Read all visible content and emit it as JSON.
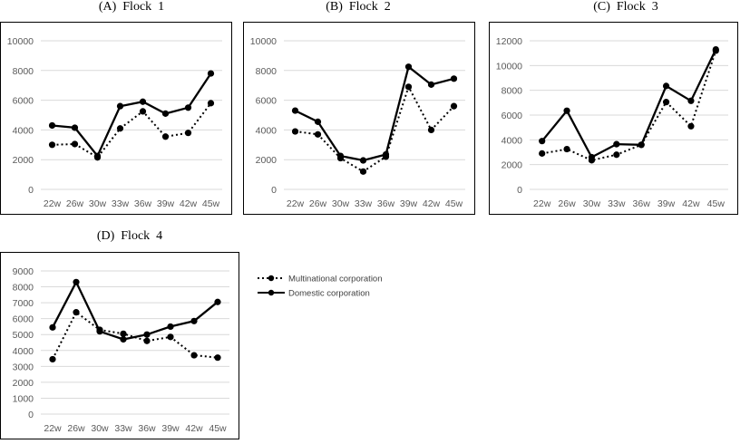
{
  "colors": {
    "line": "#000000",
    "grid": "#d9d9d9",
    "tick_text": "#595959"
  },
  "legend": {
    "items": [
      {
        "label": "Multinational corporation",
        "style": "dotted"
      },
      {
        "label": "Domestic corporation",
        "style": "solid"
      }
    ]
  },
  "chart_data": [
    {
      "type": "line",
      "title": "(A)  Flock  1",
      "categories": [
        "22w",
        "26w",
        "30w",
        "33w",
        "36w",
        "39w",
        "42w",
        "45w"
      ],
      "ylim": [
        0,
        10000
      ],
      "yticks": [
        0,
        2000,
        4000,
        6000,
        8000,
        10000
      ],
      "grid": true,
      "series": [
        {
          "name": "Multinational corporation",
          "style": "dotted",
          "values": [
            3000,
            3050,
            2150,
            4100,
            5250,
            3550,
            3800,
            5800
          ]
        },
        {
          "name": "Domestic corporation",
          "style": "solid",
          "values": [
            4300,
            4150,
            2250,
            5600,
            5900,
            5100,
            5500,
            7800
          ]
        }
      ]
    },
    {
      "type": "line",
      "title": "(B)  Flock  2",
      "categories": [
        "22w",
        "26w",
        "30w",
        "33w",
        "36w",
        "39w",
        "42w",
        "45w"
      ],
      "ylim": [
        0,
        10000
      ],
      "yticks": [
        0,
        2000,
        4000,
        6000,
        8000,
        10000
      ],
      "grid": true,
      "series": [
        {
          "name": "Multinational corporation",
          "style": "dotted",
          "values": [
            3900,
            3700,
            2100,
            1200,
            2200,
            6900,
            4000,
            5600
          ]
        },
        {
          "name": "Domestic corporation",
          "style": "solid",
          "values": [
            5300,
            4550,
            2250,
            1950,
            2350,
            8250,
            7050,
            7450
          ]
        }
      ]
    },
    {
      "type": "line",
      "title": "(C)  Flock  3",
      "categories": [
        "22w",
        "26w",
        "30w",
        "33w",
        "36w",
        "39w",
        "42w",
        "45w"
      ],
      "ylim": [
        0,
        12000
      ],
      "yticks": [
        0,
        2000,
        4000,
        6000,
        8000,
        10000,
        12000
      ],
      "grid": true,
      "series": [
        {
          "name": "Multinational corporation",
          "style": "dotted",
          "values": [
            2900,
            3250,
            2350,
            2800,
            3600,
            7050,
            5100,
            11200
          ]
        },
        {
          "name": "Domestic corporation",
          "style": "solid",
          "values": [
            3900,
            6350,
            2600,
            3650,
            3600,
            8350,
            7150,
            11300
          ]
        }
      ]
    },
    {
      "type": "line",
      "title": "(D)  Flock  4",
      "categories": [
        "22w",
        "26w",
        "30w",
        "33w",
        "36w",
        "39w",
        "42w",
        "45w"
      ],
      "ylim": [
        0,
        9000
      ],
      "yticks": [
        0,
        1000,
        2000,
        3000,
        4000,
        5000,
        6000,
        7000,
        8000,
        9000
      ],
      "grid": true,
      "series": [
        {
          "name": "Multinational corporation",
          "style": "dotted",
          "values": [
            3450,
            6400,
            5300,
            5050,
            4600,
            4850,
            3700,
            3550
          ]
        },
        {
          "name": "Domestic corporation",
          "style": "solid",
          "values": [
            5450,
            8300,
            5200,
            4700,
            5000,
            5500,
            5850,
            7050
          ]
        }
      ]
    }
  ]
}
